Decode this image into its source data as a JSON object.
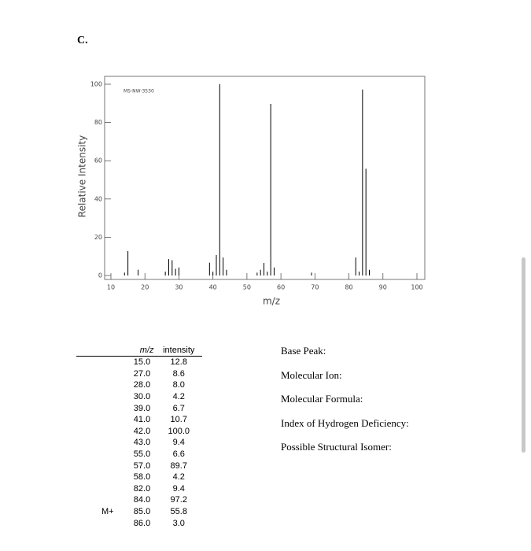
{
  "heading": "C.",
  "chart_data": {
    "type": "stem",
    "title": "MS-NW-3530",
    "xlabel": "m/z",
    "ylabel": "Relative Intensity",
    "color": "#000000",
    "x": [
      14,
      15,
      18,
      26,
      27,
      28,
      29,
      30,
      39,
      40,
      41,
      42,
      43,
      44,
      53,
      54,
      55,
      56,
      57,
      58,
      69,
      82,
      83,
      84,
      85,
      86
    ],
    "values": [
      1.5,
      12.8,
      3.0,
      2.0,
      8.6,
      8.0,
      3.5,
      4.2,
      6.7,
      2.0,
      10.7,
      100,
      9.4,
      3.0,
      1.5,
      3.0,
      6.6,
      2.0,
      89.7,
      4.2,
      1.5,
      9.4,
      2.0,
      97.2,
      55.8,
      3.0
    ],
    "xlim": [
      10,
      100
    ],
    "xticks": [
      10,
      20,
      30,
      40,
      50,
      60,
      70,
      80,
      90,
      100
    ],
    "ylim": [
      0,
      100
    ],
    "yticks": [
      0,
      20,
      40,
      60,
      80,
      100
    ]
  },
  "table": {
    "header": [
      "m/z",
      "intensity"
    ],
    "rows": [
      [
        "",
        "15.0",
        "12.8"
      ],
      [
        "",
        "27.0",
        "8.6"
      ],
      [
        "",
        "28.0",
        "8.0"
      ],
      [
        "",
        "30.0",
        "4.2"
      ],
      [
        "",
        "39.0",
        "6.7"
      ],
      [
        "",
        "41.0",
        "10.7"
      ],
      [
        "",
        "42.0",
        "100.0"
      ],
      [
        "",
        "43.0",
        "9.4"
      ],
      [
        "",
        "55.0",
        "6.6"
      ],
      [
        "",
        "57.0",
        "89.7"
      ],
      [
        "",
        "58.0",
        "4.2"
      ],
      [
        "",
        "82.0",
        "9.4"
      ],
      [
        "",
        "84.0",
        "97.2"
      ],
      [
        "M+",
        "85.0",
        "55.8"
      ],
      [
        "",
        "86.0",
        "3.0"
      ]
    ]
  },
  "questions": [
    "Base Peak:",
    "Molecular Ion:",
    "Molecular Formula:",
    "Index of Hydrogen Deficiency:",
    "Possible Structural Isomer:"
  ]
}
